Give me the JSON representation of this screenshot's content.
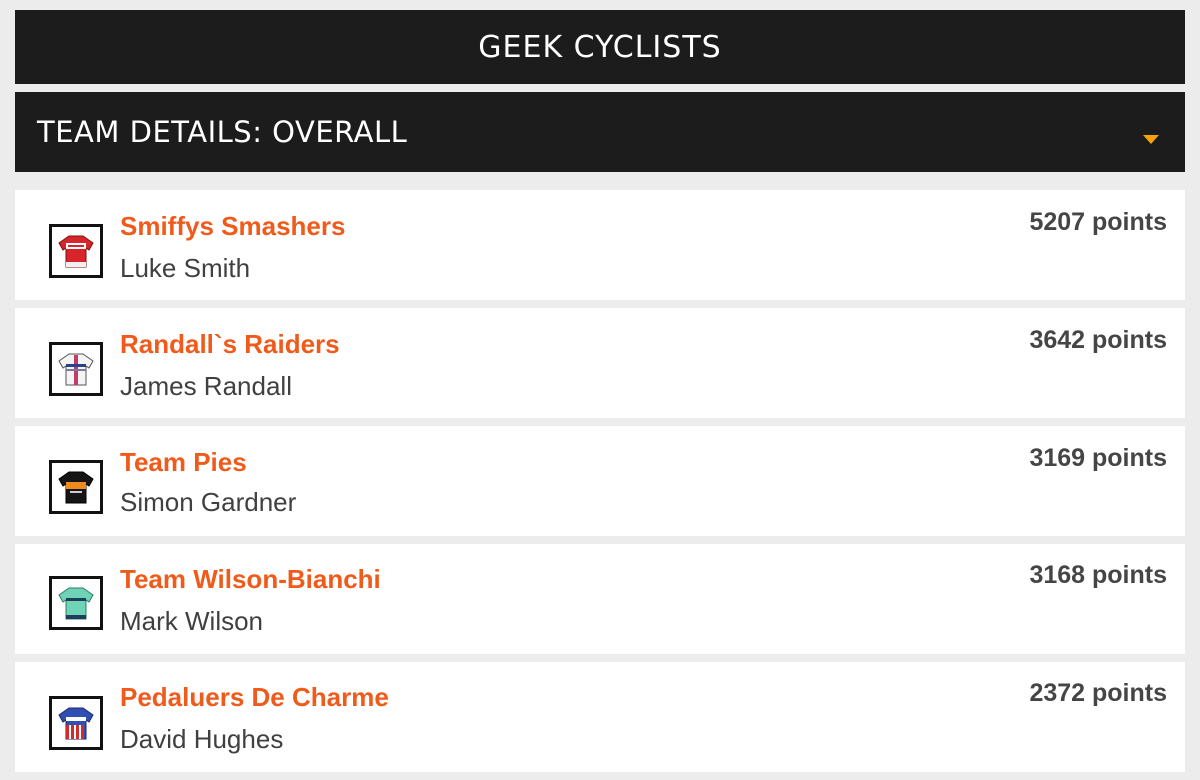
{
  "app": {
    "title": "GEEK CYCLISTS"
  },
  "section": {
    "title": "TEAM DETAILS: OVERALL"
  },
  "colors": {
    "accent": "#f05a1a",
    "caret": "#f5a20a",
    "header_bg": "#1c1c1c"
  },
  "teams": [
    {
      "name": "Smiffys Smashers",
      "manager": "Luke Smith",
      "points": "5207 points",
      "jersey_icon": "red-jersey-icon"
    },
    {
      "name": "Randall`s Raiders",
      "manager": "James Randall",
      "points": "3642 points",
      "jersey_icon": "white-jersey-icon"
    },
    {
      "name": "Team Pies",
      "manager": "Simon Gardner",
      "points": "3169 points",
      "jersey_icon": "black-orange-jersey-icon"
    },
    {
      "name": "Team Wilson-Bianchi",
      "manager": "Mark Wilson",
      "points": "3168 points",
      "jersey_icon": "celeste-jersey-icon"
    },
    {
      "name": "Pedaluers De Charme",
      "manager": "David Hughes",
      "points": "2372 points",
      "jersey_icon": "stars-stripes-jersey-icon"
    }
  ]
}
